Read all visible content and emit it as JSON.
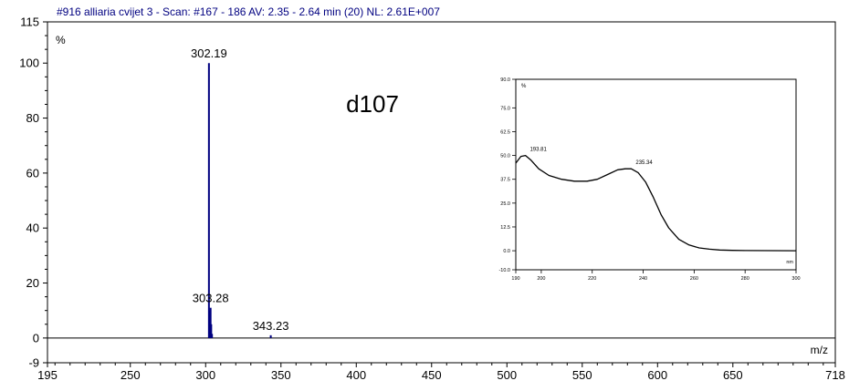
{
  "header": "#916 alliaria cvijet 3 - Scan: #167 - 186  AV: 2.35 - 2.64 min (20) NL: 2.61E+007",
  "chart_data": [
    {
      "type": "bar",
      "title": "#916 alliaria cvijet 3 - Scan: #167 - 186  AV: 2.35 - 2.64 min (20) NL: 2.61E+007",
      "xlabel": "m/z",
      "ylabel": "%",
      "xlim": [
        195,
        718
      ],
      "ylim": [
        -9,
        115
      ],
      "x_ticks": [
        195,
        250,
        300,
        350,
        400,
        450,
        500,
        550,
        600,
        650,
        718
      ],
      "y_ticks": [
        -9,
        0,
        20,
        40,
        60,
        80,
        100,
        115
      ],
      "annotation": "d107",
      "peaks": [
        {
          "x": 302.19,
          "y": 100,
          "label": "302.19"
        },
        {
          "x": 302.6,
          "y": 10,
          "label": ""
        },
        {
          "x": 303.28,
          "y": 11,
          "label": "303.28"
        },
        {
          "x": 303.7,
          "y": 5,
          "label": ""
        },
        {
          "x": 304.2,
          "y": 1.5,
          "label": ""
        },
        {
          "x": 343.23,
          "y": 1,
          "label": "343.23"
        }
      ],
      "color": "#000080"
    },
    {
      "type": "line",
      "xlabel": "nm",
      "ylabel": "%",
      "xlim": [
        190,
        300
      ],
      "ylim": [
        -10,
        90
      ],
      "x_ticks": [
        190,
        200,
        220,
        240,
        260,
        280,
        300
      ],
      "y_ticks": [
        -10.0,
        0.0,
        12.5,
        25.0,
        37.5,
        50.0,
        62.5,
        75.0,
        90.0
      ],
      "peak_labels": [
        {
          "x": 193.81,
          "y": 50,
          "label": "193.81"
        },
        {
          "x": 235.34,
          "y": 43,
          "label": "235.34"
        }
      ],
      "x": [
        190,
        192,
        193.81,
        196,
        199,
        203,
        208,
        213,
        218,
        222,
        226,
        230,
        233,
        235.34,
        238,
        241,
        244,
        247,
        250,
        254,
        258,
        262,
        266,
        270,
        275,
        280,
        290,
        300
      ],
      "y": [
        46,
        49.5,
        50,
        47.5,
        43,
        39.5,
        37.5,
        36.5,
        36.5,
        37.5,
        40,
        42.5,
        43,
        43,
        41,
        36,
        28,
        19,
        12,
        6,
        3,
        1.5,
        0.8,
        0.4,
        0.2,
        0.1,
        0.05,
        0
      ],
      "color": "#000000"
    }
  ]
}
